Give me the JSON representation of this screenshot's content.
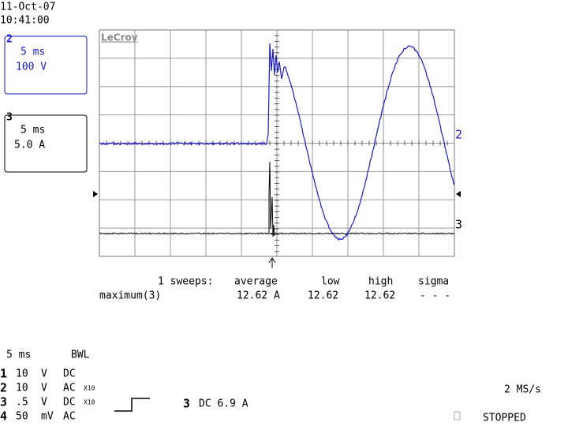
{
  "header": {
    "date": "11-Oct-07",
    "time": "10:41:00"
  },
  "channel_boxes": [
    {
      "label": "2",
      "timebase": "5 ms",
      "scale": "100 V"
    },
    {
      "label": "3",
      "timebase": "5 ms",
      "scale": "5.0 A"
    }
  ],
  "logo": "LeCroy",
  "trace_markers": [
    "2",
    "3"
  ],
  "measurement": {
    "header": [
      "1 sweeps:",
      "average",
      "low",
      "high",
      "sigma"
    ],
    "row": [
      "maximum(3)",
      "12.62 A",
      "12.62",
      "12.62",
      "- - -"
    ]
  },
  "footer": {
    "timebase": "5 ms",
    "bandwidth": "BWL",
    "channels": [
      {
        "num": "1",
        "scale": "10",
        "unit": "V",
        "coupling": "DC",
        "probe": null
      },
      {
        "num": "2",
        "scale": "10",
        "unit": "V",
        "coupling": "AC",
        "probe": "X10"
      },
      {
        "num": "3",
        "scale": ".5",
        "unit": "V",
        "coupling": "DC",
        "probe": "X10"
      },
      {
        "num": "4",
        "scale": "50",
        "unit": "mV",
        "coupling": "AC",
        "probe": null
      }
    ],
    "trigger": {
      "channel": "3",
      "text": "DC 6.9 A"
    },
    "sample_rate": "2 MS/s",
    "status": "STOPPED"
  }
}
